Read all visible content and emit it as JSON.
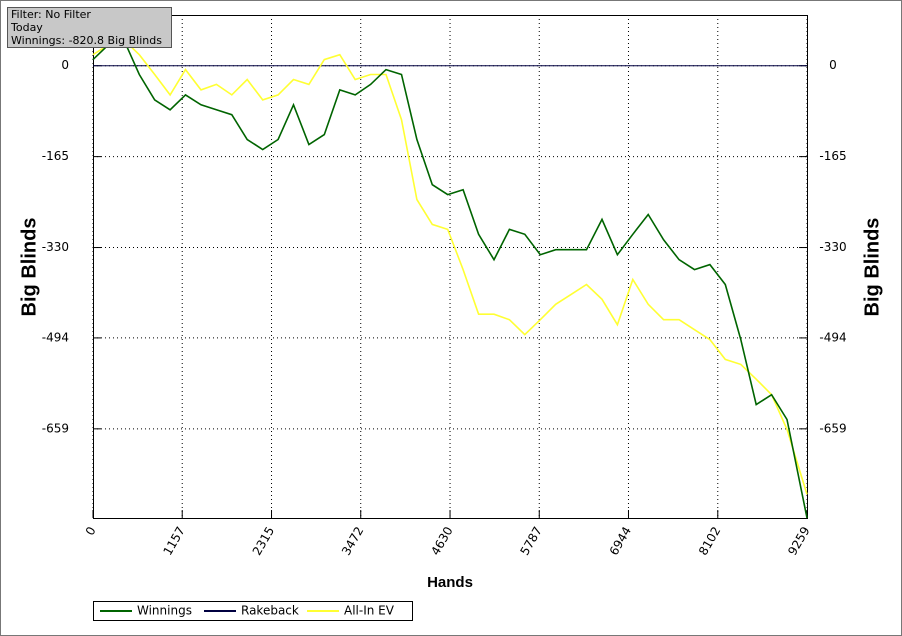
{
  "chart_data": {
    "type": "line",
    "info": [
      "Filter: No Filter",
      "Today",
      "Winnings: -820.8 Big Blinds"
    ],
    "x_label": "Hands",
    "y_label": "Big Blinds",
    "y2_label": "Big Blinds",
    "x": [
      0,
      200,
      400,
      600,
      800,
      1000,
      1200,
      1400,
      1600,
      1800,
      2000,
      2200,
      2400,
      2600,
      2800,
      3000,
      3200,
      3400,
      3600,
      3800,
      4000,
      4200,
      4400,
      4600,
      4800,
      5000,
      5200,
      5400,
      5600,
      5800,
      6000,
      6200,
      6400,
      6600,
      6800,
      7000,
      7200,
      7400,
      7600,
      7800,
      8000,
      8200,
      8400,
      8600,
      8800,
      9000,
      9259
    ],
    "series": [
      {
        "name": "Winnings",
        "color": "#006400",
        "values": [
          11,
          38,
          47,
          -16,
          -62,
          -80,
          -53,
          -71,
          -80,
          -89,
          -134,
          -152,
          -134,
          -71,
          -143,
          -125,
          -44,
          -53,
          -34,
          -7,
          -16,
          -134,
          -216,
          -234,
          -225,
          -306,
          -352,
          -297,
          -306,
          -343,
          -334,
          -334,
          -334,
          -279,
          -343,
          -306,
          -270,
          -316,
          -352,
          -370,
          -361,
          -397,
          -497,
          -615,
          -597,
          -642,
          -820.8
        ]
      },
      {
        "name": "Rakeback",
        "color": "#000040",
        "values": [
          0,
          0,
          0,
          0,
          0,
          0,
          0,
          0,
          0,
          0,
          0,
          0,
          0,
          0,
          0,
          0,
          0,
          0,
          0,
          0,
          0,
          0,
          0,
          0,
          0,
          0,
          0,
          0,
          0,
          0,
          0,
          0,
          0,
          0,
          0,
          0,
          0,
          0,
          0,
          0,
          0,
          0,
          0,
          0,
          0,
          0,
          0
        ]
      },
      {
        "name": "All-In EV",
        "color": "#ffff33",
        "values": [
          20,
          38,
          47,
          20,
          -16,
          -53,
          -7,
          -44,
          -34,
          -53,
          -25,
          -62,
          -53,
          -25,
          -34,
          11,
          20,
          -25,
          -16,
          -16,
          -98,
          -243,
          -288,
          -297,
          -370,
          -451,
          -451,
          -461,
          -488,
          -461,
          -433,
          -415,
          -397,
          -424,
          -470,
          -388,
          -433,
          -461,
          -461,
          -479,
          -497,
          -533,
          -542,
          -569,
          -597,
          -660,
          -778
        ]
      }
    ],
    "xlim": [
      0,
      9259
    ],
    "xticks": [
      0,
      1157,
      2315,
      3472,
      4630,
      5787,
      6944,
      8102,
      9259
    ],
    "ylim": [
      -820.8,
      92
    ],
    "yticks": [
      0,
      -165,
      -330,
      -494,
      -659
    ],
    "y2lim": [
      -820.8,
      92
    ],
    "y2ticks": [
      0,
      -165,
      -330,
      -494,
      -659
    ],
    "grid": true
  }
}
